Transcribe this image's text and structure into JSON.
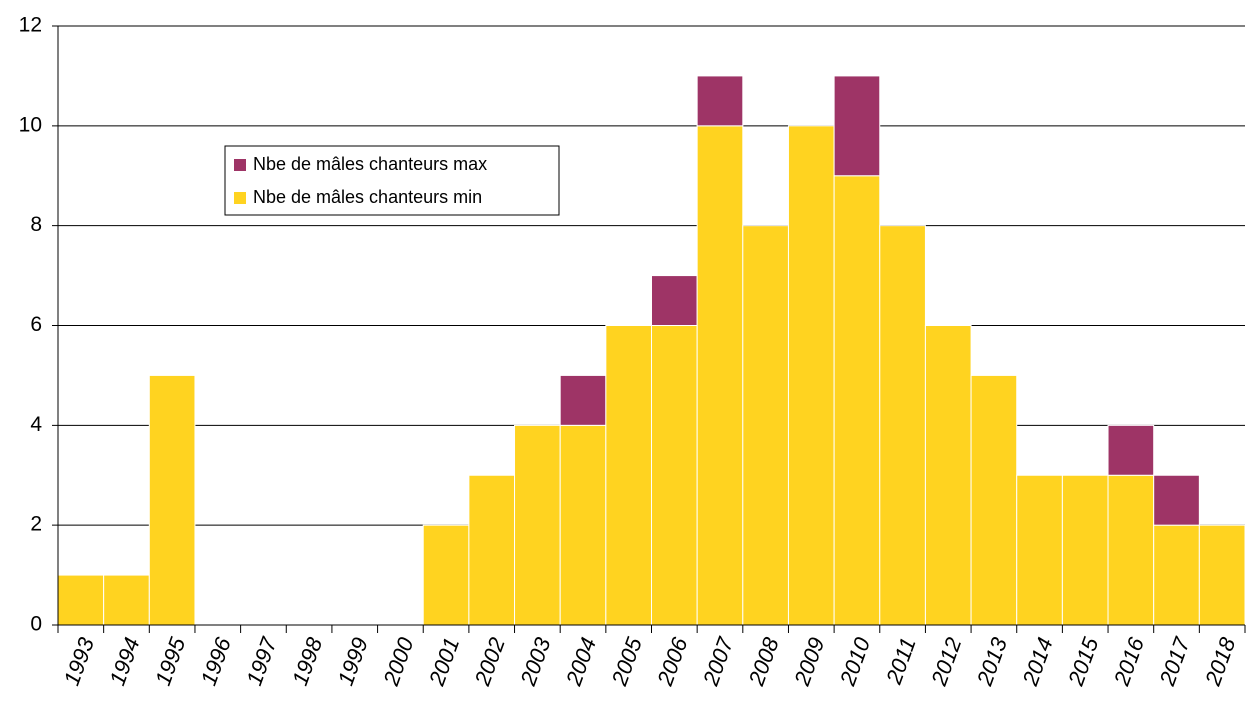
{
  "chart_data": {
    "type": "stacked-bar",
    "categories": [
      "1993",
      "1994",
      "1995",
      "1996",
      "1997",
      "1998",
      "1999",
      "2000",
      "2001",
      "2002",
      "2003",
      "2004",
      "2005",
      "2006",
      "2007",
      "2008",
      "2009",
      "2010",
      "2011",
      "2012",
      "2013",
      "2014",
      "2015",
      "2016",
      "2017",
      "2018"
    ],
    "series": [
      {
        "name": "Nbe de mâles chanteurs min",
        "color": "#ffd320",
        "values": [
          1,
          1,
          5,
          0,
          0,
          0,
          0,
          0,
          2,
          3,
          4,
          4,
          6,
          6,
          10,
          8,
          10,
          9,
          8,
          6,
          5,
          3,
          3,
          3,
          2,
          2
        ]
      },
      {
        "name": "Nbe de mâles chanteurs max",
        "color": "#9e3466",
        "values": [
          0,
          0,
          0,
          0,
          0,
          0,
          0,
          0,
          0,
          0,
          0,
          1,
          0,
          1,
          1,
          0,
          0,
          2,
          0,
          0,
          0,
          0,
          0,
          1,
          1,
          0
        ]
      }
    ],
    "ylim": [
      0,
      12
    ],
    "yticks": [
      0,
      2,
      4,
      6,
      8,
      10,
      12
    ],
    "grid": true
  }
}
